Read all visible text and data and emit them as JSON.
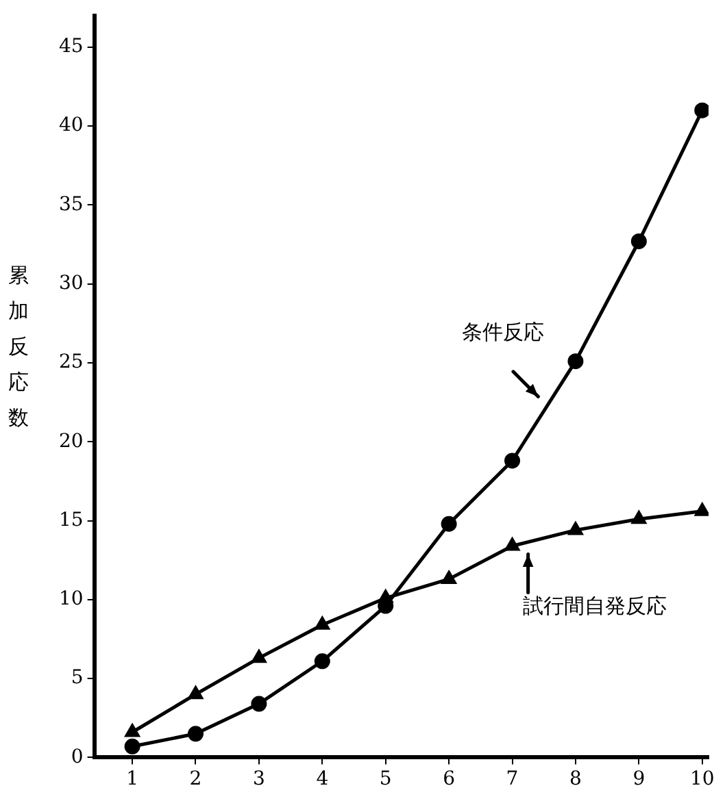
{
  "chart_data": {
    "type": "line",
    "ylabel": "累加反応数",
    "x": [
      1,
      2,
      3,
      4,
      5,
      6,
      7,
      8,
      9,
      10
    ],
    "series": [
      {
        "color": "#000000",
        "marker": "circle",
        "values": [
          0.7,
          1.5,
          3.4,
          6.1,
          9.6,
          14.8,
          18.8,
          25.1,
          32.7,
          41.0
        ]
      },
      {
        "color": "#000000",
        "marker": "triangle",
        "values": [
          1.6,
          4.0,
          6.3,
          8.4,
          10.1,
          11.3,
          13.4,
          14.4,
          15.1,
          15.6
        ]
      }
    ],
    "annotations": [
      {
        "text": "条件反応",
        "x": 7.5,
        "y": 22.5
      },
      {
        "text": "試行間自発反応",
        "x": 7.25,
        "y": 13.4
      }
    ],
    "xlim": [
      0.4,
      10.1
    ],
    "xticks": [
      1,
      2,
      3,
      4,
      5,
      6,
      7,
      8,
      9,
      10
    ],
    "ylim": [
      0,
      47
    ],
    "yticks": [
      0,
      5,
      10,
      15,
      20,
      25,
      30,
      35,
      40,
      45
    ],
    "grid": false,
    "legend": false,
    "line_style": "solid"
  }
}
